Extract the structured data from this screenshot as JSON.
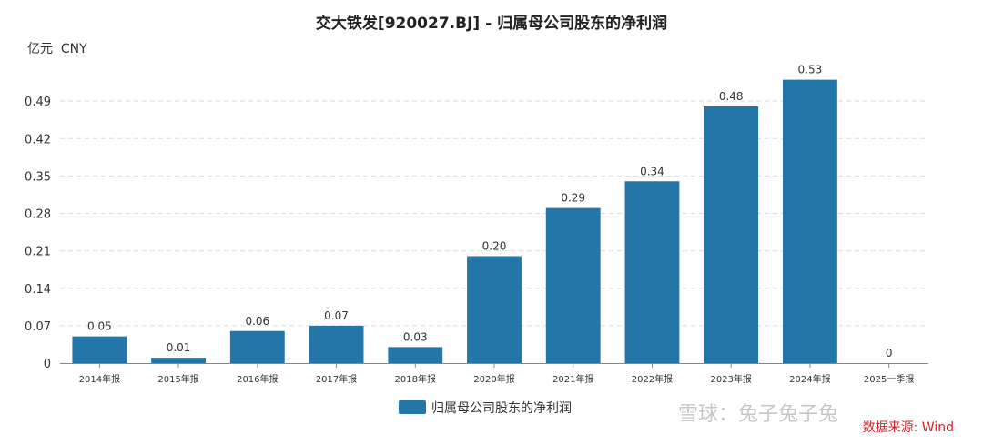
{
  "chart_data": {
    "type": "bar",
    "title": "交大铁发[920027.BJ] - 归属母公司股东的净利润",
    "ylabel": "亿元  CNY",
    "xlabel": "",
    "categories": [
      "2014年报",
      "2015年报",
      "2016年报",
      "2017年报",
      "2018年报",
      "2020年报",
      "2021年报",
      "2022年报",
      "2023年报",
      "2024年报",
      "2025一季报"
    ],
    "series": [
      {
        "name": "归属母公司股东的净利润",
        "values": [
          0.05,
          0.01,
          0.06,
          0.07,
          0.03,
          0.2,
          0.29,
          0.34,
          0.48,
          0.53,
          0
        ],
        "labels": [
          "0.05",
          "0.01",
          "0.06",
          "0.07",
          "0.03",
          "0.20",
          "0.29",
          "0.34",
          "0.48",
          "0.53",
          "0"
        ]
      }
    ],
    "ylim": [
      0,
      0.56
    ],
    "yticks": [
      0,
      0.07,
      0.14,
      0.21,
      0.28,
      0.35,
      0.42,
      0.49
    ],
    "ytick_labels": [
      "0",
      "0.07",
      "0.14",
      "0.21",
      "0.28",
      "0.35",
      "0.42",
      "0.49"
    ],
    "grid": true,
    "legend_position": "bottom-center",
    "bar_color": "#2376a7",
    "source": "数据来源: Wind",
    "watermark": "雪球：兔子兔子兔"
  }
}
